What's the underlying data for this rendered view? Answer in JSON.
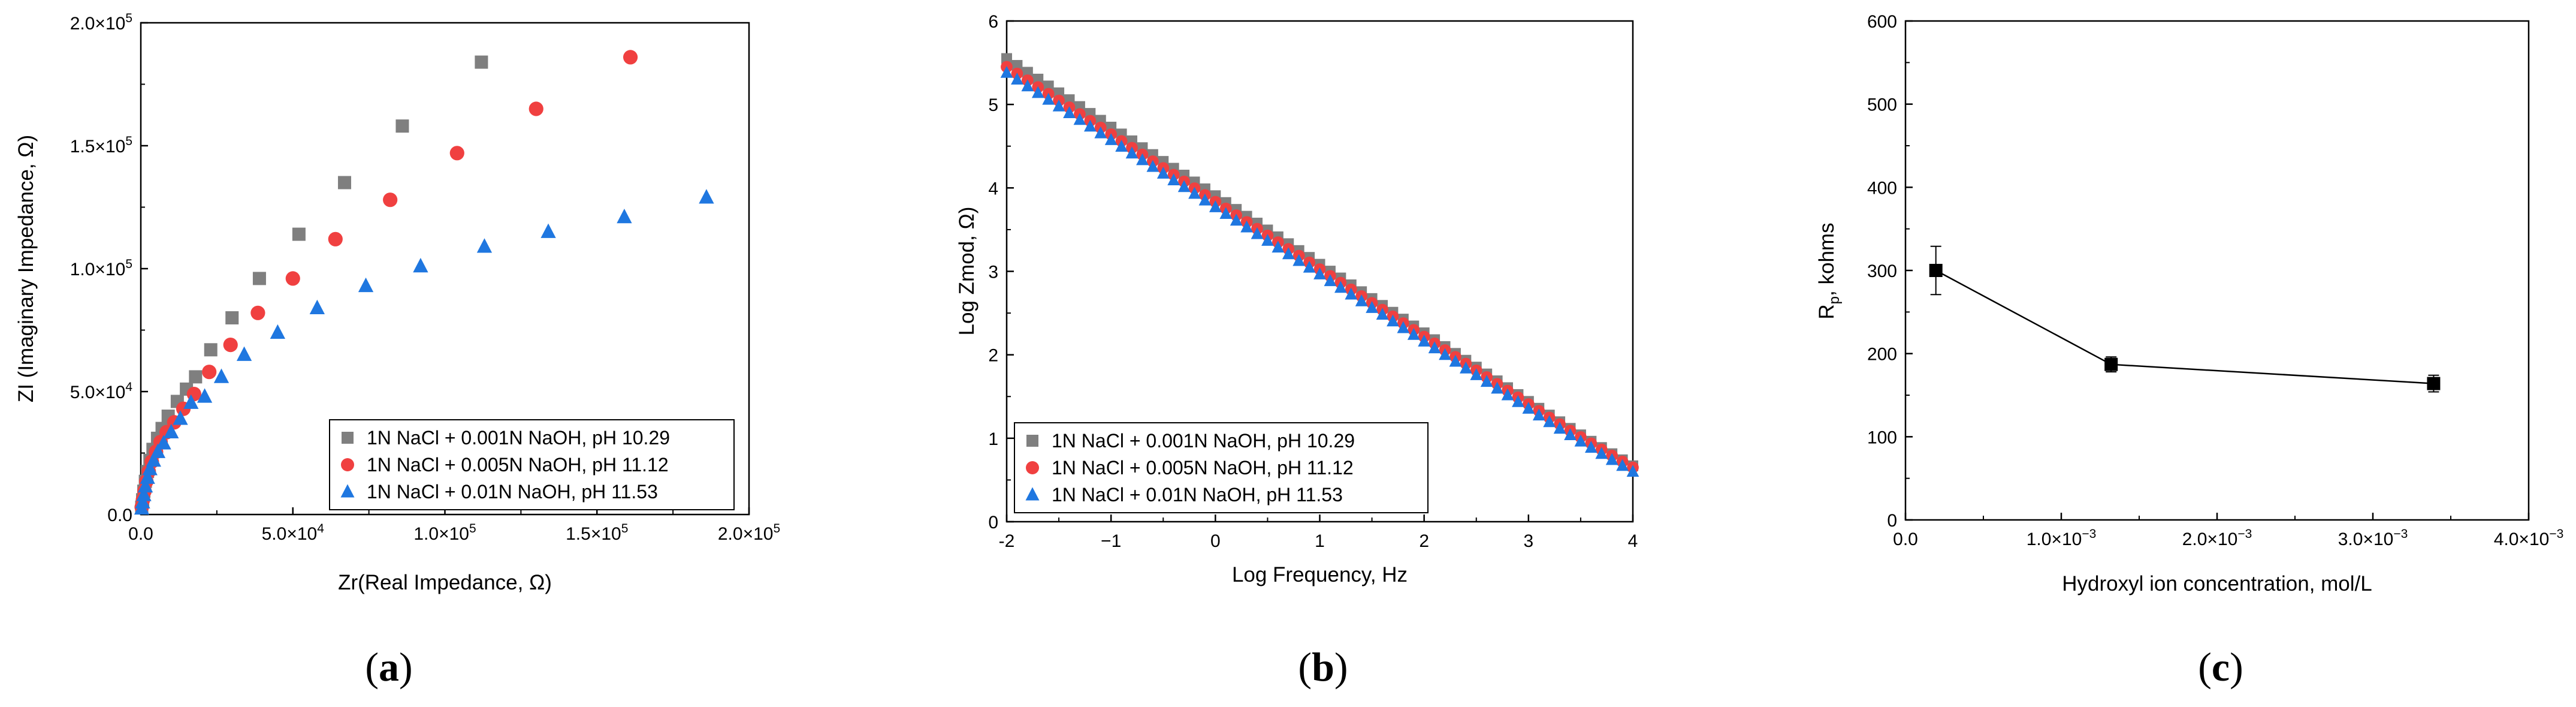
{
  "chart_data": [
    {
      "panel_label": "(a)",
      "panel_label_parts": [
        "(",
        "a",
        ")"
      ],
      "type": "scatter",
      "title": "",
      "xlabel": "Zr(Real Impedance, Ω)",
      "ylabel": "ZI (Imaginary Impedance, Ω)",
      "xlim": [
        0,
        200000
      ],
      "ylim": [
        0,
        200000
      ],
      "xticks": [
        {
          "v": 0,
          "label": "0.0"
        },
        {
          "v": 50000,
          "m": "5.0",
          "e": "4"
        },
        {
          "v": 100000,
          "m": "1.0",
          "e": "5"
        },
        {
          "v": 150000,
          "m": "1.5",
          "e": "5"
        },
        {
          "v": 200000,
          "m": "2.0",
          "e": "5"
        }
      ],
      "yticks": [
        {
          "v": 0,
          "label": "0.0"
        },
        {
          "v": 50000,
          "m": "5.0",
          "e": "4"
        },
        {
          "v": 100000,
          "m": "1.0",
          "e": "5"
        },
        {
          "v": 150000,
          "m": "1.5",
          "e": "5"
        },
        {
          "v": 200000,
          "m": "2.0",
          "e": "5"
        }
      ],
      "legend_position": "bottom-right",
      "series": [
        {
          "name": "1N NaCl + 0.001N NaOH, pH 10.29",
          "color": "#7f7f7f",
          "marker": "square",
          "x": [
            300,
            600,
            1000,
            1500,
            2200,
            3000,
            4000,
            5500,
            7000,
            9000,
            12000,
            15000,
            18000,
            23000,
            30000,
            39000,
            52000,
            67000,
            86000,
            112000
          ],
          "y": [
            3000,
            6000,
            9500,
            13500,
            17500,
            22000,
            26500,
            31000,
            35000,
            40000,
            46000,
            51000,
            56000,
            67000,
            80000,
            96000,
            114000,
            135000,
            158000,
            184000
          ]
        },
        {
          "name": "1N NaCl + 0.005N NaOH, pH 11.12",
          "color": "#f04040",
          "marker": "circle",
          "x": [
            300,
            700,
            1200,
            1800,
            2600,
            3600,
            5000,
            6500,
            8500,
            11000,
            14000,
            17500,
            22500,
            29500,
            38500,
            50000,
            64000,
            82000,
            104000,
            130000,
            161000
          ],
          "y": [
            3000,
            6000,
            9500,
            13500,
            17500,
            21500,
            25500,
            29500,
            33500,
            37500,
            43000,
            49000,
            58000,
            69000,
            82000,
            96000,
            112000,
            128000,
            147000,
            165000,
            186000
          ]
        },
        {
          "name": "1N NaCl + 0.01N NaOH, pH 11.53",
          "color": "#1f77e0",
          "marker": "triangle",
          "x": [
            300,
            600,
            1000,
            1500,
            2200,
            3000,
            4200,
            5600,
            7500,
            10000,
            13000,
            16500,
            21000,
            26500,
            34000,
            45000,
            58000,
            74000,
            92000,
            113000,
            134000,
            159000,
            186000
          ],
          "y": [
            2500,
            5000,
            8000,
            11500,
            15000,
            18500,
            22000,
            25500,
            29000,
            33500,
            39000,
            45500,
            48000,
            56000,
            65000,
            74000,
            84000,
            93000,
            101000,
            109000,
            115000,
            121000,
            129000
          ]
        }
      ]
    },
    {
      "panel_label": "(b)",
      "panel_label_parts": [
        "(",
        "b",
        ")"
      ],
      "type": "scatter",
      "title": "",
      "xlabel": "Log Frequency, Hz",
      "ylabel": "Log Zmod, Ω)",
      "xlim": [
        -2,
        4
      ],
      "ylim": [
        0,
        6
      ],
      "xticks": [
        {
          "v": -2,
          "label": "-2"
        },
        {
          "v": -1,
          "label": "−1"
        },
        {
          "v": 0,
          "label": "0"
        },
        {
          "v": 1,
          "label": "1"
        },
        {
          "v": 2,
          "label": "2"
        },
        {
          "v": 3,
          "label": "3"
        },
        {
          "v": 4,
          "label": "4"
        }
      ],
      "yticks": [
        {
          "v": 0,
          "label": "0"
        },
        {
          "v": 1,
          "label": "1"
        },
        {
          "v": 2,
          "label": "2"
        },
        {
          "v": 3,
          "label": "3"
        },
        {
          "v": 4,
          "label": "4"
        },
        {
          "v": 5,
          "label": "5"
        },
        {
          "v": 6,
          "label": "6"
        }
      ],
      "legend_position": "bottom-left",
      "series": [
        {
          "name": "1N NaCl + 0.001N NaOH, pH 10.29",
          "color": "#7f7f7f",
          "marker": "square",
          "x_start": -2,
          "x_end": 4,
          "n_points": 61,
          "y_start": 5.55,
          "y_end": 0.62,
          "tail_bend": 0.05
        },
        {
          "name": "1N NaCl + 0.005N NaOH, pH 11.12",
          "color": "#f04040",
          "marker": "circle",
          "x_start": -2,
          "x_end": 4,
          "n_points": 61,
          "y_start": 5.45,
          "y_end": 0.6,
          "tail_bend": 0.05
        },
        {
          "name": "1N NaCl + 0.01N NaOH, pH 11.53",
          "color": "#1f77e0",
          "marker": "triangle",
          "x_start": -2,
          "x_end": 4,
          "n_points": 61,
          "y_start": 5.38,
          "y_end": 0.55,
          "tail_bend": 0.05
        }
      ]
    },
    {
      "panel_label": "(c)",
      "panel_label_parts": [
        "(",
        "c",
        ")"
      ],
      "type": "line",
      "title": "",
      "xlabel": "Hydroxyl ion concentration, mol/L",
      "ylabel_main": "R",
      "ylabel_sub": "p",
      "ylabel_rest": ", kohms",
      "xlim": [
        0,
        0.004
      ],
      "ylim": [
        0,
        600
      ],
      "xticks": [
        {
          "v": 0,
          "label": "0.0"
        },
        {
          "v": 0.001,
          "m": "1.0",
          "e": "−3"
        },
        {
          "v": 0.002,
          "m": "2.0",
          "e": "−3"
        },
        {
          "v": 0.003,
          "m": "3.0",
          "e": "−3"
        },
        {
          "v": 0.004,
          "m": "4.0",
          "e": "−3"
        }
      ],
      "yticks": [
        {
          "v": 0,
          "label": "0"
        },
        {
          "v": 100,
          "label": "100"
        },
        {
          "v": 200,
          "label": "200"
        },
        {
          "v": 300,
          "label": "300"
        },
        {
          "v": 400,
          "label": "400"
        },
        {
          "v": 500,
          "label": "500"
        },
        {
          "v": 600,
          "label": "600"
        }
      ],
      "series": [
        {
          "name": "Rp",
          "color": "#000000",
          "marker": "square",
          "x": [
            0.000195,
            0.00132,
            0.00339
          ],
          "y": [
            300,
            187,
            164
          ],
          "err": [
            29,
            9,
            10
          ]
        }
      ]
    }
  ]
}
